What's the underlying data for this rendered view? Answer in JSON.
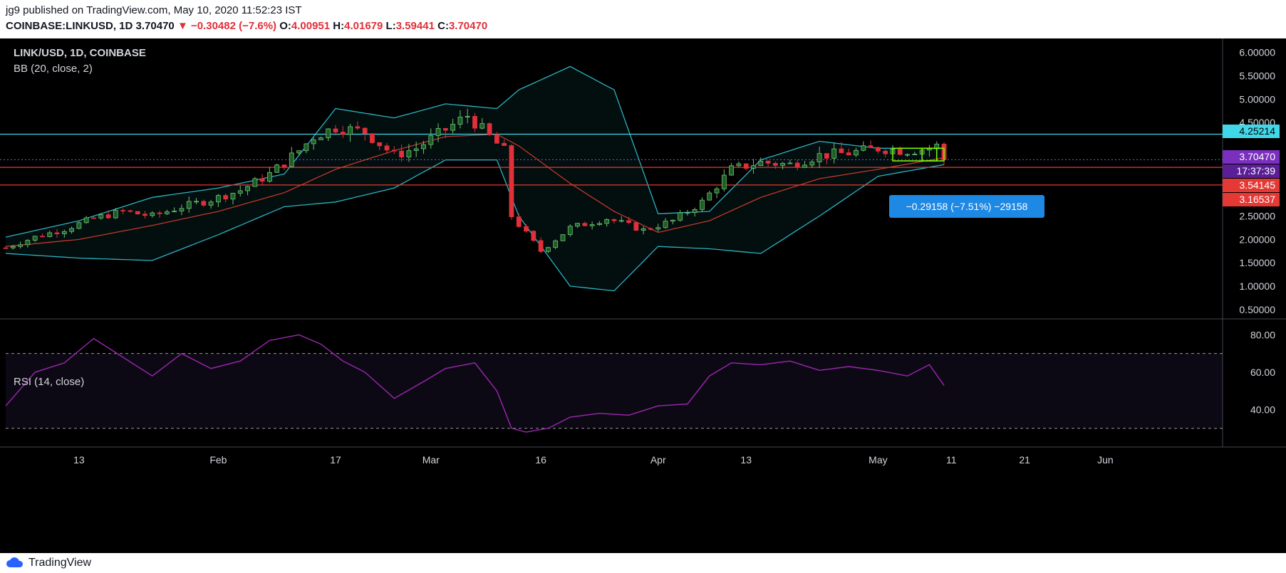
{
  "header": {
    "publisher": "jg9 published on TradingView.com, May 10, 2020 11:52:23 IST",
    "symbol": "COINBASE:LINKUSD, 1D",
    "last": "3.70470",
    "change": "▼ −0.30482 (−7.6%)",
    "open_label": "O:",
    "open": "4.00951",
    "high_label": "H:",
    "high": "4.01679",
    "low_label": "L:",
    "low": "3.59441",
    "close_label": "C:",
    "close": "3.70470"
  },
  "legend": {
    "title": "LINK/USD, 1D, COINBASE",
    "bb": "BB (20, close, 2)",
    "rsi": "RSI (14, close)"
  },
  "price_tags": {
    "resistance": "4.25214",
    "last": "3.70470",
    "countdown": "17:37:39",
    "support1": "3.54145",
    "support2": "3.16537"
  },
  "measure_label": "−0.29158 (−7.51%) −29158",
  "footer": {
    "brand": "TradingView"
  },
  "colors": {
    "up": "#26a69a",
    "up_body": "#1e5e26",
    "down": "#e0303a",
    "bb_band": "#2bb3c0",
    "bb_basis": "#c0392b",
    "rsi": "#9c27b0",
    "hline_cyan": "#40d8e8",
    "hline_red": "#e53935",
    "last_tag": "#7b2fbe",
    "highlight_box": "#7cfc00"
  },
  "chart_data": [
    {
      "type": "line",
      "title": "LINK/USD, 1D, COINBASE",
      "subtitle": "BB (20, close, 2)",
      "x_ticks": [
        "13",
        "Feb",
        "17",
        "Mar",
        "16",
        "Apr",
        "13",
        "May",
        "11",
        "21",
        "Jun"
      ],
      "y_ticks": [
        0.5,
        1.0,
        1.5,
        2.0,
        2.5,
        3.0,
        3.5,
        4.0,
        4.5,
        5.0,
        5.5,
        6.0
      ],
      "ylim": [
        0.3,
        6.3
      ],
      "x_range": [
        "2020-01-03",
        "2020-06-17"
      ],
      "grid": false,
      "horizontal_lines": [
        4.25214,
        3.54145,
        3.16537
      ],
      "series": [
        {
          "name": "close",
          "x": [
            "2020-01-03",
            "2020-01-07",
            "2020-01-11",
            "2020-01-15",
            "2020-01-19",
            "2020-01-23",
            "2020-01-27",
            "2020-01-31",
            "2020-02-04",
            "2020-02-08",
            "2020-02-12",
            "2020-02-14",
            "2020-02-17",
            "2020-02-21",
            "2020-02-25",
            "2020-02-28",
            "2020-03-03",
            "2020-03-06",
            "2020-03-09",
            "2020-03-11",
            "2020-03-12",
            "2020-03-16",
            "2020-03-20",
            "2020-03-25",
            "2020-03-30",
            "2020-04-03",
            "2020-04-07",
            "2020-04-11",
            "2020-04-15",
            "2020-04-19",
            "2020-04-23",
            "2020-04-27",
            "2020-05-01",
            "2020-05-05",
            "2020-05-08",
            "2020-05-09",
            "2020-05-10"
          ],
          "values": [
            1.82,
            2.05,
            2.22,
            2.45,
            2.6,
            2.5,
            2.7,
            2.85,
            3.05,
            3.4,
            3.9,
            4.2,
            4.4,
            4.3,
            3.8,
            3.95,
            4.35,
            4.65,
            4.2,
            3.9,
            2.5,
            1.75,
            2.25,
            2.45,
            2.2,
            2.4,
            2.8,
            3.5,
            3.65,
            3.6,
            3.8,
            3.85,
            3.95,
            3.9,
            3.95,
            4.0,
            3.7
          ]
        },
        {
          "name": "BB upper",
          "x": [
            "2020-01-03",
            "2020-01-13",
            "2020-01-23",
            "2020-02-01",
            "2020-02-10",
            "2020-02-17",
            "2020-02-25",
            "2020-03-03",
            "2020-03-10",
            "2020-03-13",
            "2020-03-20",
            "2020-03-26",
            "2020-04-01",
            "2020-04-08",
            "2020-04-15",
            "2020-04-23",
            "2020-05-01",
            "2020-05-10"
          ],
          "values": [
            2.05,
            2.4,
            2.9,
            3.1,
            3.4,
            4.8,
            4.6,
            4.9,
            4.8,
            5.2,
            5.7,
            5.2,
            2.55,
            2.6,
            3.7,
            4.1,
            3.95,
            3.95
          ]
        },
        {
          "name": "BB basis",
          "x": [
            "2020-01-03",
            "2020-01-13",
            "2020-01-23",
            "2020-02-01",
            "2020-02-10",
            "2020-02-17",
            "2020-02-25",
            "2020-03-03",
            "2020-03-10",
            "2020-03-13",
            "2020-03-20",
            "2020-03-26",
            "2020-04-01",
            "2020-04-08",
            "2020-04-15",
            "2020-04-23",
            "2020-05-01",
            "2020-05-10"
          ],
          "values": [
            1.85,
            2.0,
            2.3,
            2.6,
            3.0,
            3.5,
            3.9,
            4.2,
            4.25,
            4.0,
            3.2,
            2.6,
            2.15,
            2.4,
            2.9,
            3.3,
            3.5,
            3.75
          ]
        },
        {
          "name": "BB lower",
          "x": [
            "2020-01-03",
            "2020-01-13",
            "2020-01-23",
            "2020-02-01",
            "2020-02-10",
            "2020-02-17",
            "2020-02-25",
            "2020-03-03",
            "2020-03-10",
            "2020-03-13",
            "2020-03-20",
            "2020-03-26",
            "2020-04-01",
            "2020-04-08",
            "2020-04-15",
            "2020-04-23",
            "2020-05-01",
            "2020-05-10"
          ],
          "values": [
            1.7,
            1.6,
            1.55,
            2.1,
            2.7,
            2.8,
            3.1,
            3.7,
            3.7,
            2.5,
            1.0,
            0.9,
            1.85,
            1.8,
            1.7,
            2.5,
            3.35,
            3.6
          ]
        }
      ]
    },
    {
      "type": "line",
      "title": "RSI (14, close)",
      "x_range": [
        "2020-01-03",
        "2020-06-17"
      ],
      "y_ticks": [
        40,
        60,
        80
      ],
      "ylim": [
        20,
        87
      ],
      "reference_lines": [
        70,
        30
      ],
      "series": [
        {
          "name": "RSI",
          "x": [
            "2020-01-03",
            "2020-01-07",
            "2020-01-11",
            "2020-01-15",
            "2020-01-19",
            "2020-01-23",
            "2020-01-27",
            "2020-01-31",
            "2020-02-04",
            "2020-02-08",
            "2020-02-12",
            "2020-02-15",
            "2020-02-18",
            "2020-02-21",
            "2020-02-25",
            "2020-02-29",
            "2020-03-03",
            "2020-03-07",
            "2020-03-10",
            "2020-03-12",
            "2020-03-14",
            "2020-03-17",
            "2020-03-20",
            "2020-03-24",
            "2020-03-28",
            "2020-04-01",
            "2020-04-05",
            "2020-04-08",
            "2020-04-11",
            "2020-04-15",
            "2020-04-19",
            "2020-04-23",
            "2020-04-27",
            "2020-05-01",
            "2020-05-05",
            "2020-05-08",
            "2020-05-10"
          ],
          "values": [
            42,
            60,
            65,
            78,
            68,
            58,
            70,
            62,
            66,
            77,
            80,
            75,
            66,
            60,
            46,
            55,
            62,
            65,
            50,
            30,
            28,
            30,
            36,
            38,
            37,
            42,
            43,
            58,
            65,
            64,
            66,
            61,
            63,
            61,
            58,
            64,
            53
          ]
        }
      ]
    }
  ]
}
